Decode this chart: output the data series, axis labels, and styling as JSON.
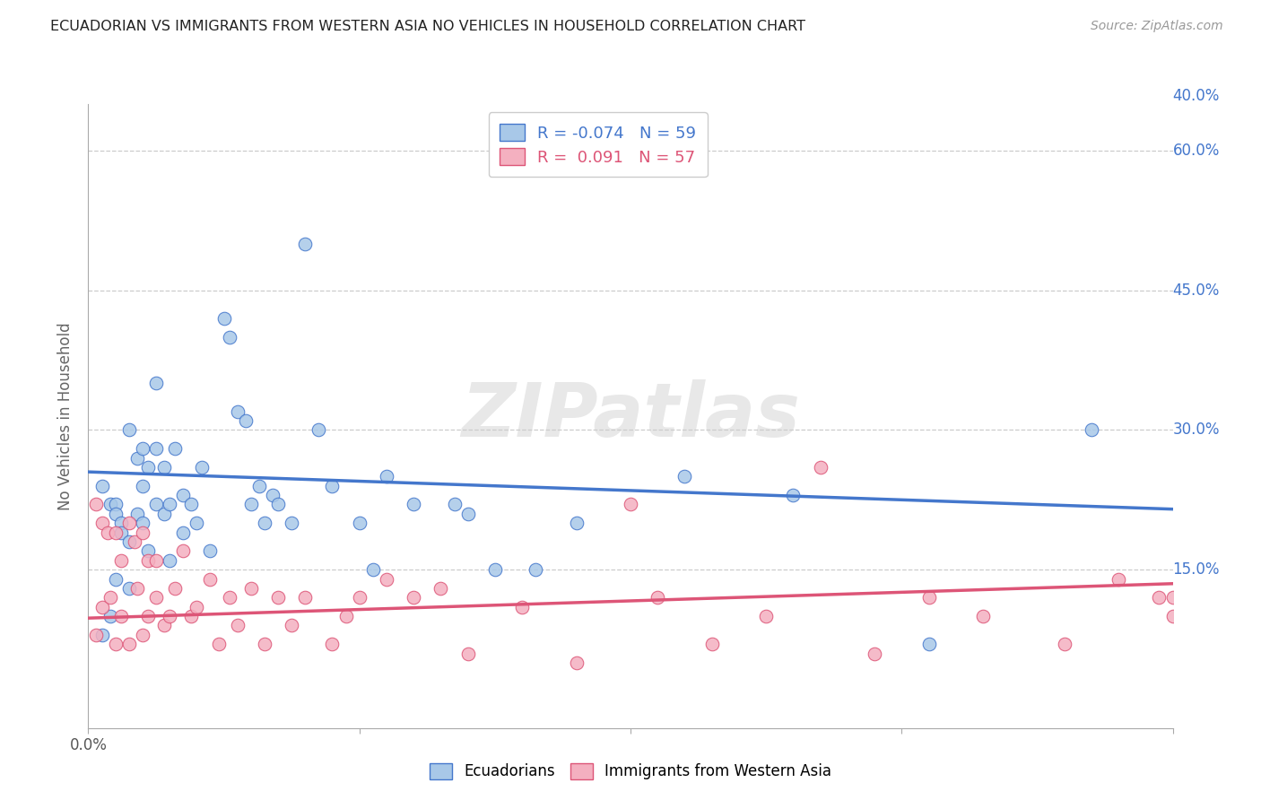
{
  "title": "ECUADORIAN VS IMMIGRANTS FROM WESTERN ASIA NO VEHICLES IN HOUSEHOLD CORRELATION CHART",
  "source": "Source: ZipAtlas.com",
  "ylabel": "No Vehicles in Household",
  "xlim": [
    0.0,
    0.4
  ],
  "ylim": [
    -0.02,
    0.65
  ],
  "blue_R": -0.074,
  "blue_N": 59,
  "pink_R": 0.091,
  "pink_N": 57,
  "blue_color": "#a8c8e8",
  "pink_color": "#f4b0c0",
  "blue_line_color": "#4477cc",
  "pink_line_color": "#dd5577",
  "watermark": "ZIPatlas",
  "blue_line_x0": 0.0,
  "blue_line_y0": 0.255,
  "blue_line_x1": 0.4,
  "blue_line_y1": 0.215,
  "pink_line_x0": 0.0,
  "pink_line_y0": 0.098,
  "pink_line_x1": 0.4,
  "pink_line_y1": 0.135,
  "blue_scatter_x": [
    0.005,
    0.005,
    0.008,
    0.008,
    0.01,
    0.01,
    0.01,
    0.012,
    0.012,
    0.015,
    0.015,
    0.015,
    0.018,
    0.018,
    0.02,
    0.02,
    0.02,
    0.022,
    0.022,
    0.025,
    0.025,
    0.025,
    0.028,
    0.028,
    0.03,
    0.03,
    0.032,
    0.035,
    0.035,
    0.038,
    0.04,
    0.042,
    0.045,
    0.05,
    0.052,
    0.055,
    0.058,
    0.06,
    0.063,
    0.065,
    0.068,
    0.07,
    0.075,
    0.08,
    0.085,
    0.09,
    0.1,
    0.105,
    0.11,
    0.12,
    0.135,
    0.14,
    0.15,
    0.165,
    0.18,
    0.22,
    0.26,
    0.31,
    0.37
  ],
  "blue_scatter_y": [
    0.24,
    0.08,
    0.22,
    0.1,
    0.22,
    0.21,
    0.14,
    0.2,
    0.19,
    0.3,
    0.18,
    0.13,
    0.27,
    0.21,
    0.28,
    0.24,
    0.2,
    0.26,
    0.17,
    0.35,
    0.28,
    0.22,
    0.26,
    0.21,
    0.22,
    0.16,
    0.28,
    0.23,
    0.19,
    0.22,
    0.2,
    0.26,
    0.17,
    0.42,
    0.4,
    0.32,
    0.31,
    0.22,
    0.24,
    0.2,
    0.23,
    0.22,
    0.2,
    0.5,
    0.3,
    0.24,
    0.2,
    0.15,
    0.25,
    0.22,
    0.22,
    0.21,
    0.15,
    0.15,
    0.2,
    0.25,
    0.23,
    0.07,
    0.3
  ],
  "pink_scatter_x": [
    0.003,
    0.003,
    0.005,
    0.005,
    0.007,
    0.008,
    0.01,
    0.01,
    0.012,
    0.012,
    0.015,
    0.015,
    0.017,
    0.018,
    0.02,
    0.02,
    0.022,
    0.022,
    0.025,
    0.025,
    0.028,
    0.03,
    0.032,
    0.035,
    0.038,
    0.04,
    0.045,
    0.048,
    0.052,
    0.055,
    0.06,
    0.065,
    0.07,
    0.075,
    0.08,
    0.09,
    0.095,
    0.1,
    0.11,
    0.12,
    0.13,
    0.14,
    0.16,
    0.18,
    0.2,
    0.21,
    0.23,
    0.25,
    0.27,
    0.29,
    0.31,
    0.33,
    0.36,
    0.38,
    0.395,
    0.4,
    0.4
  ],
  "pink_scatter_y": [
    0.22,
    0.08,
    0.2,
    0.11,
    0.19,
    0.12,
    0.19,
    0.07,
    0.16,
    0.1,
    0.2,
    0.07,
    0.18,
    0.13,
    0.19,
    0.08,
    0.16,
    0.1,
    0.16,
    0.12,
    0.09,
    0.1,
    0.13,
    0.17,
    0.1,
    0.11,
    0.14,
    0.07,
    0.12,
    0.09,
    0.13,
    0.07,
    0.12,
    0.09,
    0.12,
    0.07,
    0.1,
    0.12,
    0.14,
    0.12,
    0.13,
    0.06,
    0.11,
    0.05,
    0.22,
    0.12,
    0.07,
    0.1,
    0.26,
    0.06,
    0.12,
    0.1,
    0.07,
    0.14,
    0.12,
    0.1,
    0.12
  ]
}
